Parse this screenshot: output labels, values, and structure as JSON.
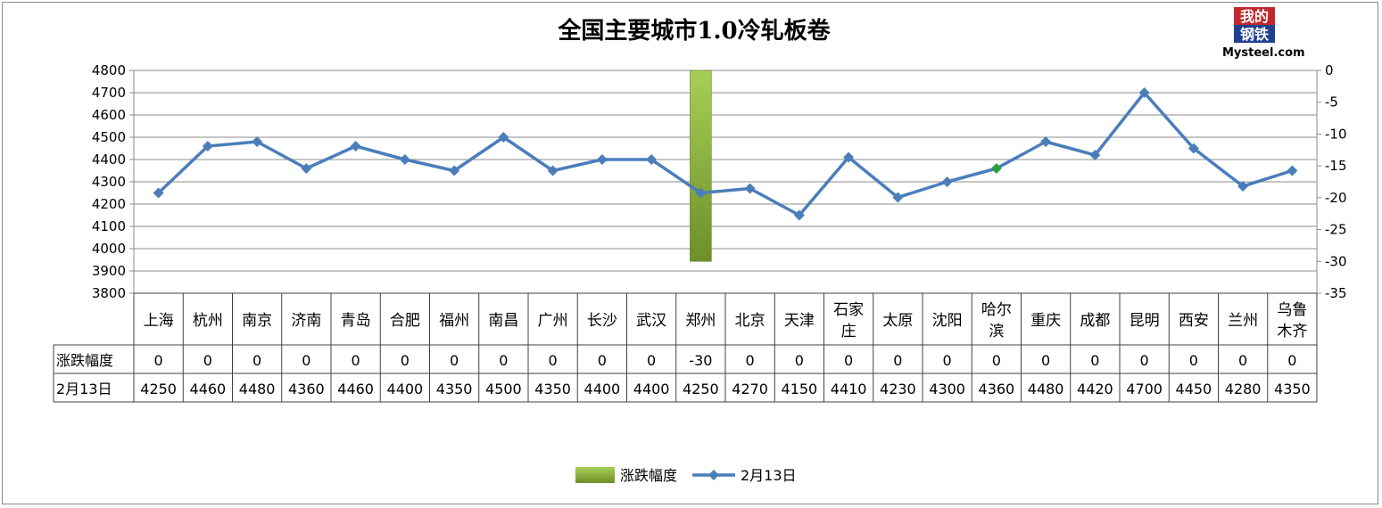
{
  "logo": {
    "top_text": "我的",
    "bottom_text": "钢铁",
    "brand": "Mysteel.com"
  },
  "chart_data": {
    "type": "line",
    "title": "全国主要城市1.0冷轧板卷",
    "categories": [
      [
        "上海"
      ],
      [
        "杭州"
      ],
      [
        "南京"
      ],
      [
        "济南"
      ],
      [
        "青岛"
      ],
      [
        "合肥"
      ],
      [
        "福州"
      ],
      [
        "南昌"
      ],
      [
        "广州"
      ],
      [
        "长沙"
      ],
      [
        "武汉"
      ],
      [
        "郑州"
      ],
      [
        "北京"
      ],
      [
        "天津"
      ],
      [
        "石家",
        "庄"
      ],
      [
        "太原"
      ],
      [
        "沈阳"
      ],
      [
        "哈尔",
        "滨"
      ],
      [
        "重庆"
      ],
      [
        "成都"
      ],
      [
        "昆明"
      ],
      [
        "西安"
      ],
      [
        "兰州"
      ],
      [
        "乌鲁",
        "木齐"
      ]
    ],
    "y_left": {
      "min": 3800,
      "max": 4800,
      "step": 100
    },
    "y_right": {
      "min": -35,
      "max": 0,
      "step": 5
    },
    "grid": true,
    "legend_position": "bottom",
    "series": [
      {
        "name": "涨跌幅度",
        "kind": "bar",
        "axis": "right",
        "color": "#8dba3a",
        "values": [
          0,
          0,
          0,
          0,
          0,
          0,
          0,
          0,
          0,
          0,
          0,
          -30,
          0,
          0,
          0,
          0,
          0,
          0,
          0,
          0,
          0,
          0,
          0,
          0
        ]
      },
      {
        "name": "2月13日",
        "kind": "line",
        "axis": "left",
        "color": "#4a7ebb",
        "values": [
          4250,
          4460,
          4480,
          4360,
          4460,
          4400,
          4350,
          4500,
          4350,
          4400,
          4400,
          4250,
          4270,
          4150,
          4410,
          4230,
          4300,
          4360,
          4480,
          4420,
          4700,
          4450,
          4280,
          4350
        ]
      }
    ]
  }
}
